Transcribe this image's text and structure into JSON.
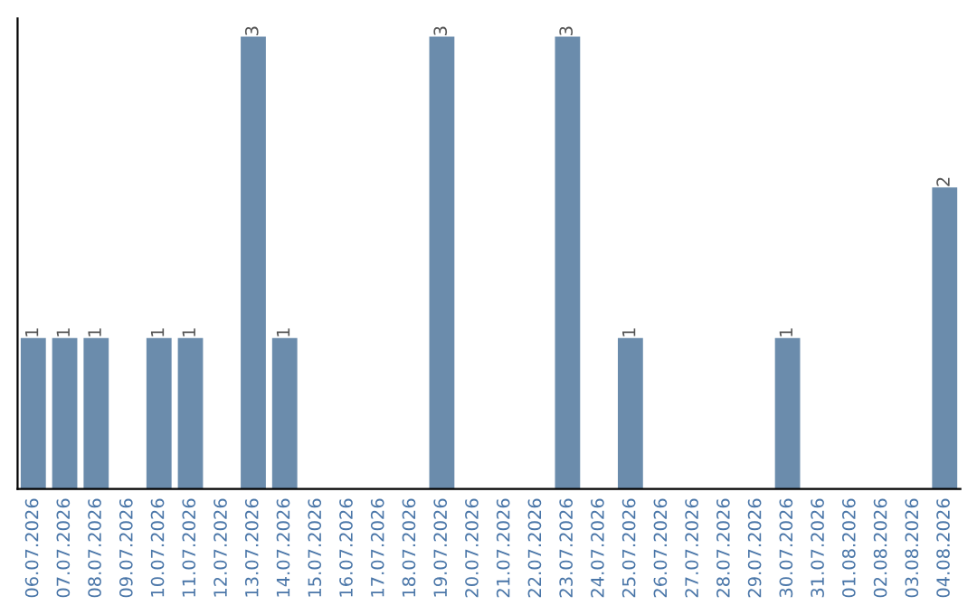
{
  "chart_data": {
    "type": "bar",
    "categories": [
      "06.07.2026",
      "07.07.2026",
      "08.07.2026",
      "09.07.2026",
      "10.07.2026",
      "11.07.2026",
      "12.07.2026",
      "13.07.2026",
      "14.07.2026",
      "15.07.2026",
      "16.07.2026",
      "17.07.2026",
      "18.07.2026",
      "19.07.2026",
      "20.07.2026",
      "21.07.2026",
      "22.07.2026",
      "23.07.2026",
      "24.07.2026",
      "25.07.2026",
      "26.07.2026",
      "27.07.2026",
      "28.07.2026",
      "29.07.2026",
      "30.07.2026",
      "31.07.2026",
      "01.08.2026",
      "02.08.2026",
      "03.08.2026",
      "04.08.2026"
    ],
    "values": [
      1,
      1,
      1,
      0,
      1,
      1,
      0,
      3,
      1,
      0,
      0,
      0,
      0,
      3,
      0,
      0,
      0,
      3,
      0,
      1,
      0,
      0,
      0,
      0,
      1,
      0,
      0,
      0,
      0,
      2
    ],
    "value_labels": [
      "1",
      "1",
      "1",
      null,
      "1",
      "1",
      null,
      "3",
      "1",
      null,
      null,
      null,
      null,
      "3",
      null,
      null,
      null,
      "3",
      null,
      "1",
      null,
      null,
      null,
      null,
      "1",
      null,
      null,
      null,
      null,
      "2"
    ],
    "color": "#6b8cac",
    "grid": false,
    "legend": false,
    "tick_labels": "x"
  }
}
